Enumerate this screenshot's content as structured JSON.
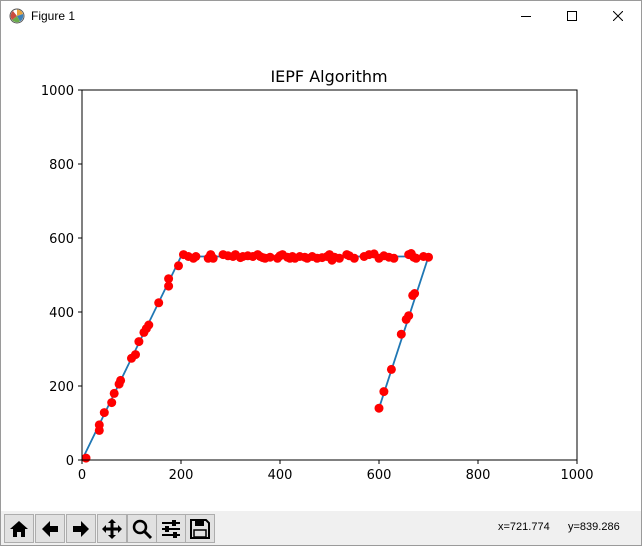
{
  "window": {
    "title": "Figure 1",
    "controls": [
      "minimize",
      "maximize",
      "close"
    ]
  },
  "toolbar": {
    "buttons": [
      {
        "name": "home",
        "icon": "home-icon"
      },
      {
        "name": "back",
        "icon": "arrow-left-icon"
      },
      {
        "name": "forward",
        "icon": "arrow-right-icon"
      },
      {
        "name": "pan",
        "icon": "move-icon"
      },
      {
        "name": "zoom",
        "icon": "magnifier-icon"
      },
      {
        "name": "configure-subplots",
        "icon": "sliders-icon"
      },
      {
        "name": "save",
        "icon": "floppy-disk-icon"
      }
    ],
    "x_readout": "x=721.774",
    "y_readout": "y=839.286"
  },
  "chart_data": {
    "type": "scatter",
    "title": "IEPF Algorithm",
    "xlabel": "",
    "ylabel": "",
    "xlim": [
      0,
      1000
    ],
    "ylim": [
      0,
      1000
    ],
    "xticks": [
      "0",
      "200",
      "400",
      "600",
      "800",
      "1000"
    ],
    "yticks": [
      "0",
      "200",
      "400",
      "600",
      "800",
      "1000"
    ],
    "grid": false,
    "colors": {
      "points": "#ff0000",
      "line": "#1f77b4"
    },
    "line_vertices": [
      [
        0,
        0
      ],
      [
        200,
        550
      ],
      [
        700,
        550
      ],
      [
        600,
        140
      ]
    ],
    "points": [
      [
        8,
        5
      ],
      [
        35,
        80
      ],
      [
        35,
        95
      ],
      [
        45,
        128
      ],
      [
        60,
        155
      ],
      [
        65,
        180
      ],
      [
        75,
        205
      ],
      [
        78,
        215
      ],
      [
        100,
        275
      ],
      [
        108,
        285
      ],
      [
        115,
        320
      ],
      [
        125,
        345
      ],
      [
        130,
        355
      ],
      [
        135,
        365
      ],
      [
        155,
        425
      ],
      [
        175,
        470
      ],
      [
        175,
        490
      ],
      [
        195,
        525
      ],
      [
        205,
        555
      ],
      [
        215,
        550
      ],
      [
        225,
        545
      ],
      [
        230,
        550
      ],
      [
        255,
        545
      ],
      [
        260,
        555
      ],
      [
        265,
        545
      ],
      [
        285,
        555
      ],
      [
        295,
        552
      ],
      [
        305,
        550
      ],
      [
        310,
        555
      ],
      [
        320,
        547
      ],
      [
        325,
        550
      ],
      [
        335,
        552
      ],
      [
        345,
        550
      ],
      [
        355,
        555
      ],
      [
        360,
        550
      ],
      [
        365,
        547
      ],
      [
        370,
        545
      ],
      [
        380,
        548
      ],
      [
        395,
        545
      ],
      [
        400,
        552
      ],
      [
        405,
        555
      ],
      [
        415,
        548
      ],
      [
        420,
        545
      ],
      [
        425,
        550
      ],
      [
        430,
        545
      ],
      [
        440,
        550
      ],
      [
        450,
        548
      ],
      [
        455,
        545
      ],
      [
        465,
        550
      ],
      [
        475,
        545
      ],
      [
        485,
        547
      ],
      [
        495,
        550
      ],
      [
        500,
        555
      ],
      [
        505,
        540
      ],
      [
        510,
        548
      ],
      [
        520,
        545
      ],
      [
        535,
        555
      ],
      [
        540,
        552
      ],
      [
        550,
        545
      ],
      [
        570,
        550
      ],
      [
        580,
        555
      ],
      [
        590,
        557
      ],
      [
        600,
        545
      ],
      [
        610,
        552
      ],
      [
        620,
        548
      ],
      [
        630,
        545
      ],
      [
        660,
        555
      ],
      [
        665,
        558
      ],
      [
        670,
        548
      ],
      [
        675,
        545
      ],
      [
        690,
        550
      ],
      [
        700,
        548
      ],
      [
        600,
        140
      ],
      [
        610,
        185
      ],
      [
        625,
        245
      ],
      [
        645,
        340
      ],
      [
        655,
        380
      ],
      [
        660,
        390
      ],
      [
        668,
        445
      ],
      [
        672,
        450
      ]
    ]
  }
}
